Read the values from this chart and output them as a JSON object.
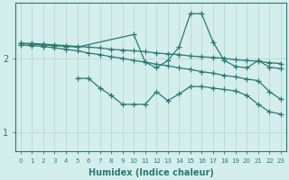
{
  "line_color": "#2a7a70",
  "background_color": "#d4eeed",
  "grid_color": "#b8d8d4",
  "xlabel": "Humidex (Indice chaleur)",
  "xlabel_fontsize": 7,
  "yticks": [
    1,
    2
  ],
  "xlim": [
    -0.5,
    23.5
  ],
  "ylim": [
    0.75,
    2.75
  ],
  "line1_x": [
    0,
    1,
    2,
    3,
    4,
    5,
    6,
    7,
    8,
    9,
    10,
    11,
    12,
    13,
    14,
    15,
    16,
    17,
    18,
    19,
    20,
    21,
    22,
    23
  ],
  "line1_y": [
    2.2,
    2.2,
    2.19,
    2.18,
    2.17,
    2.16,
    2.15,
    2.14,
    2.12,
    2.11,
    2.1,
    2.09,
    2.07,
    2.06,
    2.05,
    2.03,
    2.02,
    2.01,
    2.0,
    1.98,
    1.97,
    1.96,
    1.94,
    1.93
  ],
  "line2_x": [
    0,
    1,
    2,
    3,
    4,
    5,
    6,
    7,
    8,
    9,
    10,
    11,
    12,
    13,
    14,
    15,
    16,
    17,
    18,
    19,
    20,
    21,
    22,
    23
  ],
  "line2_y": [
    2.18,
    2.17,
    2.16,
    2.14,
    2.12,
    2.1,
    2.07,
    2.05,
    2.02,
    2.0,
    1.97,
    1.95,
    1.92,
    1.9,
    1.87,
    1.85,
    1.82,
    1.8,
    1.77,
    1.75,
    1.72,
    1.7,
    1.55,
    1.45
  ],
  "line3_x": [
    0,
    1,
    2,
    3,
    4,
    5,
    10,
    11,
    12,
    13,
    14,
    15,
    16,
    17,
    18,
    19,
    20,
    21,
    22,
    23
  ],
  "line3_y": [
    2.2,
    2.19,
    2.18,
    2.17,
    2.16,
    2.15,
    2.32,
    1.95,
    1.87,
    1.97,
    2.15,
    2.6,
    2.6,
    2.22,
    1.97,
    1.89,
    1.87,
    1.97,
    1.88,
    1.86
  ],
  "line4_x": [
    5,
    6,
    7,
    8,
    9,
    10,
    11,
    12,
    13,
    14,
    15,
    16,
    17,
    18,
    19,
    20,
    21,
    22,
    23
  ],
  "line4_y": [
    1.73,
    1.73,
    1.6,
    1.5,
    1.38,
    1.38,
    1.38,
    1.55,
    1.43,
    1.52,
    1.62,
    1.62,
    1.6,
    1.58,
    1.56,
    1.5,
    1.38,
    1.28,
    1.25
  ],
  "marker": "+",
  "markersize": 4,
  "linewidth": 0.9
}
